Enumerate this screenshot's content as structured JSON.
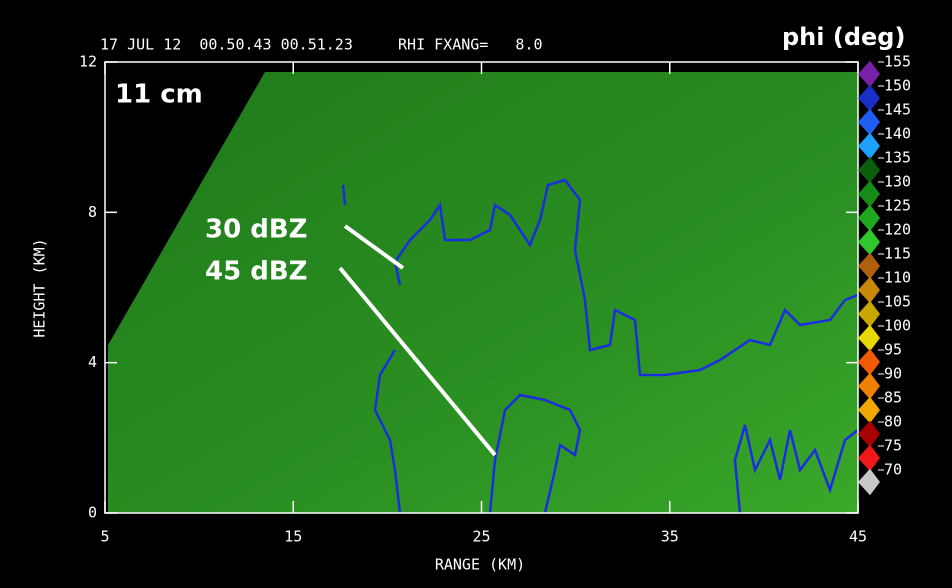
{
  "chart_data": {
    "type": "rhi",
    "header": "17 JUL 12  00.50.43 00.51.23     RHI FXANG=   8.0",
    "title": "phi (deg)",
    "label": "11 cm",
    "annotations": [
      "30 dBZ",
      "45 dBZ"
    ],
    "xlabel": "RANGE (KM)",
    "ylabel": "HEIGHT (KM)",
    "xlim": [
      5,
      45
    ],
    "ylim": [
      0,
      12
    ],
    "xticks": [
      5,
      15,
      25,
      35,
      45
    ],
    "yticks": [
      0,
      4,
      8,
      12
    ],
    "colorbar": {
      "ticks": [
        155,
        150,
        145,
        140,
        135,
        130,
        125,
        120,
        115,
        110,
        105,
        100,
        95,
        90,
        85,
        80,
        75,
        70
      ],
      "colors": [
        "#7a1fa8",
        "#1a2fc8",
        "#1e5ef0",
        "#1ea0ff",
        "#0b5e0b",
        "#168c16",
        "#1fa81f",
        "#2ec82e",
        "#b0600a",
        "#c8880a",
        "#c8a800",
        "#e8d800",
        "#f05a00",
        "#f08000",
        "#f0a800",
        "#a80000",
        "#f01818",
        "#c8c8c8"
      ]
    }
  }
}
